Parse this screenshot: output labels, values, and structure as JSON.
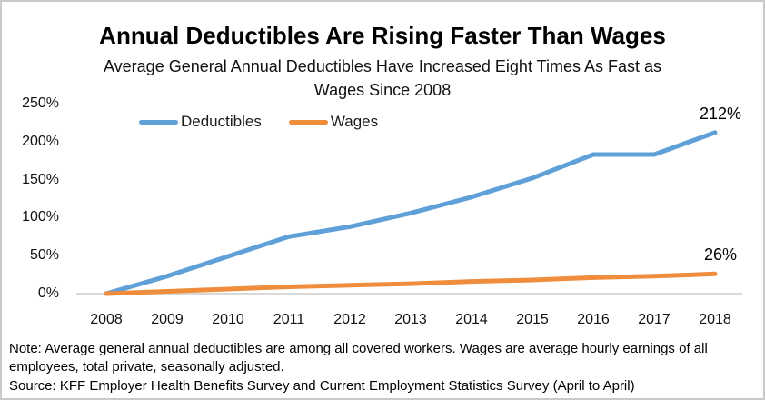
{
  "note": "Note: Average general annual deductibles are among all covered workers. Wages are average hourly earnings of all\nemployees, total private, seasonally adjusted.",
  "source": "Source: KFF Employer Health Benefits Survey and Current Employment Statistics Survey (April to April)",
  "colors": {
    "deductibles": "#5FA0D8",
    "wages": "#EF8D3C",
    "axis_line": "#D9D9D9",
    "text": "#000000"
  },
  "chart_data": {
    "type": "line",
    "title": "Annual Deductibles Are Rising Faster Than Wages",
    "subtitle": "Average General Annual Deductibles Have Increased Eight Times As Fast as\nWages Since 2008",
    "x": [
      "2008",
      "2009",
      "2010",
      "2011",
      "2012",
      "2013",
      "2014",
      "2015",
      "2016",
      "2017",
      "2018"
    ],
    "series": [
      {
        "name": "Deductibles",
        "color": "#5FA0D8",
        "values": [
          0,
          23,
          49,
          75,
          88,
          106,
          127,
          152,
          183,
          183,
          212
        ],
        "end_label": "212%"
      },
      {
        "name": "Wages",
        "color": "#EF8D3C",
        "values": [
          0,
          3,
          6,
          9,
          11,
          13,
          16,
          18,
          21,
          23,
          26
        ],
        "end_label": "26%"
      }
    ],
    "xlabel": "",
    "ylabel": "",
    "ylim": [
      0,
      250
    ],
    "y_ticks": [
      {
        "label": "250%",
        "value": 250
      },
      {
        "label": "200%",
        "value": 200
      },
      {
        "label": "150%",
        "value": 150
      },
      {
        "label": "100%",
        "value": 100
      },
      {
        "label": "50%",
        "value": 50
      },
      {
        "label": "0%",
        "value": 0
      }
    ],
    "grid": false,
    "legend_position": "top-left-inside"
  }
}
